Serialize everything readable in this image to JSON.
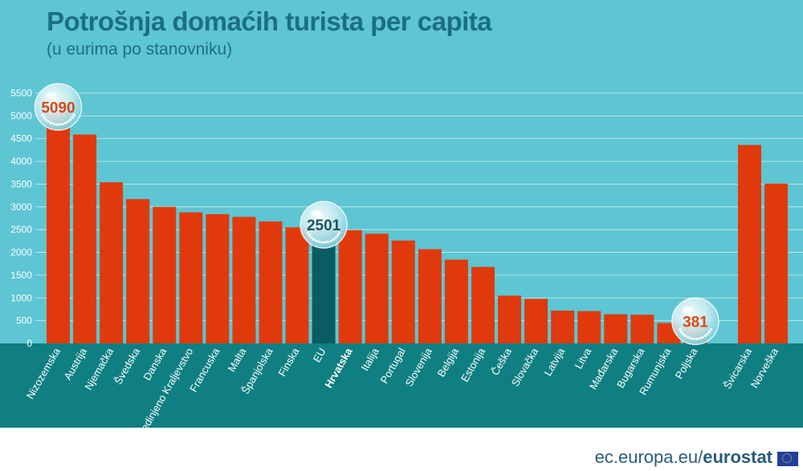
{
  "chart_data": {
    "type": "bar",
    "title": "Potrošnja domaćih turista per capita",
    "subtitle": "(u eurima po stanovniku)",
    "xlabel": "",
    "ylabel": "",
    "ylim": [
      0,
      5500
    ],
    "yticks": [
      0,
      500,
      1000,
      1500,
      2000,
      2500,
      3000,
      3500,
      4000,
      4500,
      5000,
      5500
    ],
    "grid": true,
    "categories": [
      "Nizozemska",
      "Austrija",
      "Njemačka",
      "Švedska",
      "Danska",
      "Ujedinjeno Kraljevstvo",
      "Francuska",
      "Malta",
      "Španjolska",
      "Finska",
      "EU",
      "Hrvatska",
      "Italija",
      "Portugal",
      "Slovenija",
      "Belgija",
      "Estonija",
      "Češka",
      "Slovačka",
      "Latvija",
      "Litva",
      "Mađarska",
      "Bugarska",
      "Rumunjska",
      "Poljska",
      "Švicarska",
      "Norveška"
    ],
    "values": [
      5090,
      4590,
      3540,
      3170,
      3000,
      2880,
      2840,
      2780,
      2680,
      2550,
      2501,
      2490,
      2410,
      2260,
      2070,
      1840,
      1680,
      1050,
      980,
      720,
      710,
      640,
      630,
      450,
      381,
      4360,
      3510
    ],
    "highlight": [
      "EU"
    ],
    "bold_labels": [
      "Hrvatska"
    ],
    "callouts": [
      {
        "category": "Nizozemska",
        "label": "5090",
        "color": "#d84a18"
      },
      {
        "category": "EU",
        "label": "2501",
        "color": "#1c5560"
      },
      {
        "category": "Poljska",
        "label": "381",
        "color": "#d84a18"
      }
    ],
    "colors": {
      "bar": "#e03a0c",
      "highlight_bar": "#0a5c63",
      "background": "#5ec5d2",
      "band": "#0f7f82"
    }
  },
  "footer": {
    "domain": "ec.europa.eu/",
    "brand": "eurostat"
  }
}
